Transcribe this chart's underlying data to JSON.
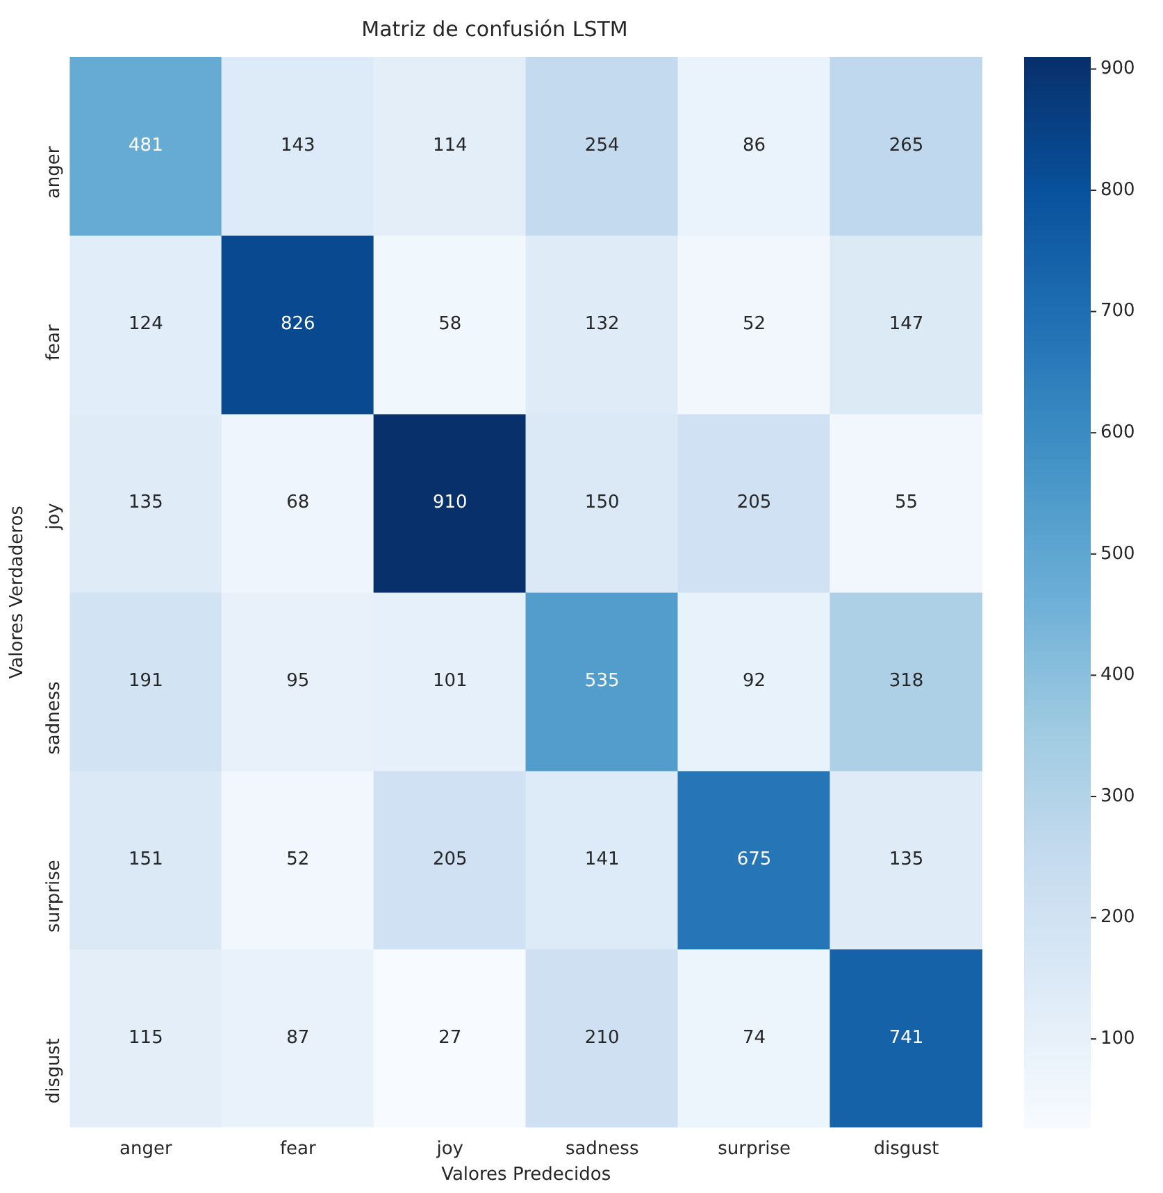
{
  "chart_data": {
    "type": "heatmap",
    "title": "Matriz de confusión LSTM",
    "xlabel": "Valores Predecidos",
    "ylabel": "Valores Verdaderos",
    "categories": [
      "anger",
      "fear",
      "joy",
      "sadness",
      "surprise",
      "disgust"
    ],
    "y_categories": [
      "anger",
      "fear",
      "joy",
      "sadness",
      "surprise",
      "disgust"
    ],
    "cells": [
      [
        481,
        143,
        114,
        254,
        86,
        265
      ],
      [
        124,
        826,
        58,
        132,
        52,
        147
      ],
      [
        135,
        68,
        910,
        150,
        205,
        55
      ],
      [
        191,
        95,
        101,
        535,
        92,
        318
      ],
      [
        151,
        52,
        205,
        141,
        675,
        135
      ],
      [
        115,
        87,
        27,
        210,
        74,
        741
      ]
    ],
    "clim": [
      27,
      910
    ],
    "cticks": [
      100,
      200,
      300,
      400,
      500,
      600,
      700,
      800,
      900
    ],
    "data_labels": true,
    "grid": false
  }
}
